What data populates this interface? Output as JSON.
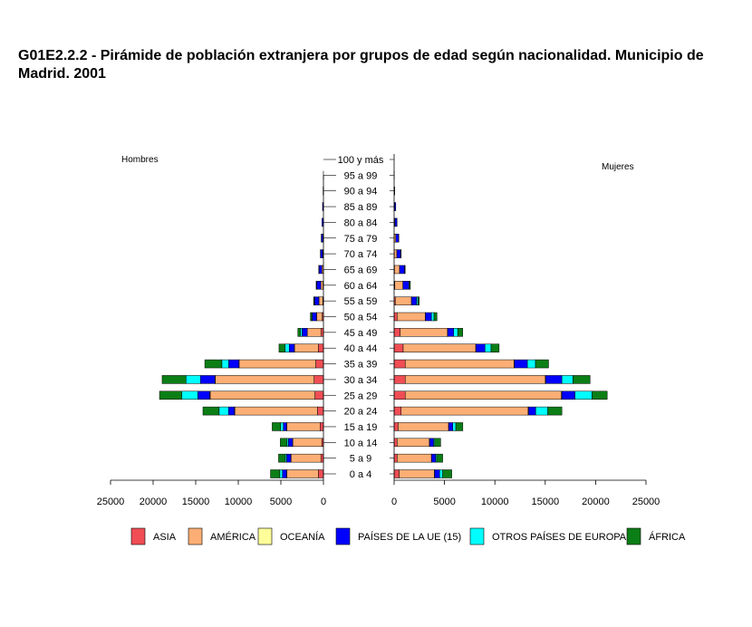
{
  "title": "G01E2.2.2 - Pirámide de población extranjera por grupos de edad según nacionalidad. Municipio de Madrid. 2001",
  "chart_data": {
    "type": "bar",
    "orientation": "horizontal-pyramid",
    "left_label": "Hombres",
    "right_label": "Mujeres",
    "categories": [
      "0 a 4",
      "5 a 9",
      "10 a 14",
      "15 a 19",
      "20 a 24",
      "25 a 29",
      "30 a 34",
      "35 a 39",
      "40 a 44",
      "45 a 49",
      "50 a 54",
      "55 a 59",
      "60 a 64",
      "65 a 69",
      "70 a 74",
      "75 a 79",
      "80 a 84",
      "85 a 89",
      "90 a 94",
      "95 a 99",
      "100 y más"
    ],
    "xlim": [
      0,
      25000
    ],
    "xticks_left": [
      "25000",
      "20000",
      "15000",
      "10000",
      "5000",
      "0"
    ],
    "xticks_right": [
      "0",
      "5000",
      "10000",
      "15000",
      "20000",
      "25000"
    ],
    "colors": {
      "ASIA": "#f04d55",
      "AMÉRICA": "#fcae74",
      "OCEANÍA": "#fdfd9a",
      "PAÍSES DE LA UE (15)": "#0000fe",
      "OTROS PAÍSES DE EUROPA": "#00fefe",
      "ÁFRICA": "#0c7e16"
    },
    "legend": [
      "ASIA",
      "AMÉRICA",
      "OCEANÍA",
      "PAÍSES DE LA UE (15)",
      "OTROS PAÍSES DE EUROPA",
      "ÁFRICA"
    ],
    "hombres": [
      {
        "name": "ASIA",
        "values": [
          600,
          300,
          200,
          400,
          700,
          1000,
          1100,
          900,
          600,
          300,
          150,
          80,
          50,
          30,
          20,
          10,
          5,
          5,
          0,
          0,
          0
        ]
      },
      {
        "name": "AMÉRICA",
        "values": [
          3700,
          3500,
          3400,
          3900,
          9700,
          12300,
          11600,
          9000,
          2800,
          1600,
          650,
          450,
          250,
          150,
          80,
          60,
          30,
          15,
          5,
          0,
          0
        ]
      },
      {
        "name": "OCEANÍA",
        "values": [
          20,
          20,
          20,
          20,
          50,
          50,
          40,
          30,
          20,
          10,
          5,
          5,
          0,
          0,
          0,
          0,
          0,
          0,
          0,
          0,
          0
        ]
      },
      {
        "name": "PAÍSES DE LA UE (15)",
        "values": [
          500,
          500,
          500,
          400,
          700,
          1400,
          1700,
          1200,
          600,
          600,
          500,
          500,
          500,
          350,
          250,
          180,
          140,
          90,
          40,
          10,
          0
        ]
      },
      {
        "name": "OTROS PAÍSES DE EUROPA",
        "values": [
          300,
          150,
          150,
          300,
          1100,
          1900,
          1700,
          800,
          500,
          200,
          80,
          40,
          20,
          10,
          0,
          0,
          0,
          0,
          0,
          0,
          0
        ]
      },
      {
        "name": "ÁFRICA",
        "values": [
          1100,
          800,
          800,
          1000,
          1900,
          2600,
          2800,
          2000,
          700,
          300,
          150,
          80,
          40,
          20,
          10,
          5,
          0,
          0,
          0,
          0,
          0
        ]
      }
    ],
    "mujeres": [
      {
        "name": "ASIA",
        "values": [
          500,
          300,
          300,
          400,
          700,
          1100,
          1100,
          1100,
          900,
          600,
          300,
          120,
          70,
          40,
          20,
          10,
          5,
          5,
          0,
          0,
          0
        ]
      },
      {
        "name": "AMÉRICA",
        "values": [
          3500,
          3400,
          3200,
          5000,
          12600,
          15500,
          13900,
          10800,
          7200,
          4700,
          2800,
          1600,
          800,
          500,
          250,
          150,
          80,
          40,
          10,
          0,
          0
        ]
      },
      {
        "name": "OCEANÍA",
        "values": [
          20,
          20,
          20,
          20,
          50,
          50,
          50,
          30,
          20,
          10,
          5,
          5,
          0,
          0,
          0,
          0,
          0,
          0,
          0,
          0,
          0
        ]
      },
      {
        "name": "PAÍSES DE LA UE (15)",
        "values": [
          500,
          400,
          400,
          400,
          700,
          1300,
          1600,
          1300,
          900,
          600,
          600,
          500,
          600,
          500,
          400,
          300,
          200,
          120,
          50,
          10,
          0
        ]
      },
      {
        "name": "OTROS PAÍSES DE EUROPA",
        "values": [
          300,
          100,
          100,
          300,
          1200,
          1700,
          1100,
          800,
          600,
          400,
          250,
          120,
          60,
          20,
          10,
          0,
          0,
          0,
          0,
          0,
          0
        ]
      },
      {
        "name": "ÁFRICA",
        "values": [
          900,
          600,
          600,
          700,
          1400,
          1500,
          1700,
          1300,
          800,
          500,
          300,
          150,
          80,
          40,
          20,
          10,
          5,
          0,
          0,
          0,
          0
        ]
      }
    ]
  }
}
